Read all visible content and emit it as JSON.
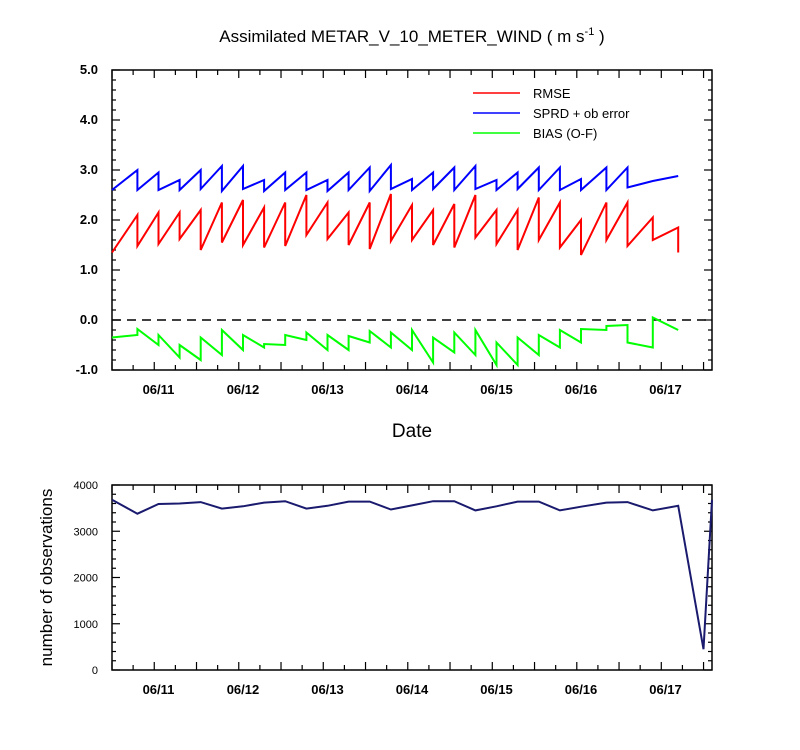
{
  "chart_data": [
    {
      "type": "line",
      "title_main": "Assimilated METAR_V_10_METER_WIND ( m s",
      "title_sup": "-1",
      "title_end": " )",
      "xlabel": "Date",
      "ylabel": "",
      "xlim": [
        0,
        7.1
      ],
      "ylim": [
        -1.0,
        5.0
      ],
      "yticks": [
        "-1.0",
        "0.0",
        "1.0",
        "2.0",
        "3.0",
        "4.0",
        "5.0"
      ],
      "x_categories": [
        "06/11",
        "06/12",
        "06/13",
        "06/14",
        "06/15",
        "06/16",
        "06/17"
      ],
      "zero_line": true,
      "legend_position": "top-right",
      "series": [
        {
          "name": "RMSE",
          "color": "#ff0000",
          "points": [
            [
              0,
              1.35
            ],
            [
              0.3,
              2.1
            ],
            [
              0.3,
              1.48
            ],
            [
              0.55,
              2.15
            ],
            [
              0.55,
              1.52
            ],
            [
              0.8,
              2.15
            ],
            [
              0.8,
              1.62
            ],
            [
              1.05,
              2.2
            ],
            [
              1.05,
              1.4
            ],
            [
              1.3,
              2.35
            ],
            [
              1.3,
              1.55
            ],
            [
              1.55,
              2.4
            ],
            [
              1.55,
              1.5
            ],
            [
              1.8,
              2.25
            ],
            [
              1.8,
              1.45
            ],
            [
              2.05,
              2.35
            ],
            [
              2.05,
              1.48
            ],
            [
              2.3,
              2.5
            ],
            [
              2.3,
              1.7
            ],
            [
              2.55,
              2.35
            ],
            [
              2.55,
              1.62
            ],
            [
              2.8,
              2.15
            ],
            [
              2.8,
              1.5
            ],
            [
              3.05,
              2.35
            ],
            [
              3.05,
              1.42
            ],
            [
              3.3,
              2.52
            ],
            [
              3.3,
              1.58
            ],
            [
              3.55,
              2.3
            ],
            [
              3.55,
              1.6
            ],
            [
              3.8,
              2.2
            ],
            [
              3.8,
              1.5
            ],
            [
              4.05,
              2.32
            ],
            [
              4.05,
              1.45
            ],
            [
              4.3,
              2.5
            ],
            [
              4.3,
              1.65
            ],
            [
              4.55,
              2.2
            ],
            [
              4.55,
              1.52
            ],
            [
              4.8,
              2.2
            ],
            [
              4.8,
              1.4
            ],
            [
              5.05,
              2.45
            ],
            [
              5.05,
              1.6
            ],
            [
              5.3,
              2.35
            ],
            [
              5.3,
              1.45
            ],
            [
              5.55,
              2.0
            ],
            [
              5.55,
              1.3
            ],
            [
              5.85,
              2.35
            ],
            [
              5.85,
              1.6
            ],
            [
              6.1,
              2.35
            ],
            [
              6.1,
              1.48
            ],
            [
              6.4,
              2.05
            ],
            [
              6.4,
              1.6
            ],
            [
              6.7,
              1.85
            ],
            [
              6.7,
              1.35
            ]
          ]
        },
        {
          "name": "SPRD + ob error",
          "color": "#0000ff",
          "points": [
            [
              0,
              2.6
            ],
            [
              0.3,
              3.0
            ],
            [
              0.3,
              2.6
            ],
            [
              0.55,
              2.95
            ],
            [
              0.55,
              2.6
            ],
            [
              0.8,
              2.8
            ],
            [
              0.8,
              2.6
            ],
            [
              1.05,
              3.0
            ],
            [
              1.05,
              2.62
            ],
            [
              1.3,
              3.08
            ],
            [
              1.3,
              2.58
            ],
            [
              1.55,
              3.08
            ],
            [
              1.55,
              2.62
            ],
            [
              1.8,
              2.8
            ],
            [
              1.8,
              2.58
            ],
            [
              2.05,
              2.95
            ],
            [
              2.05,
              2.6
            ],
            [
              2.3,
              2.95
            ],
            [
              2.3,
              2.6
            ],
            [
              2.55,
              2.8
            ],
            [
              2.55,
              2.58
            ],
            [
              2.8,
              2.95
            ],
            [
              2.8,
              2.6
            ],
            [
              3.05,
              3.05
            ],
            [
              3.05,
              2.58
            ],
            [
              3.3,
              3.1
            ],
            [
              3.3,
              2.62
            ],
            [
              3.55,
              2.82
            ],
            [
              3.55,
              2.6
            ],
            [
              3.8,
              2.95
            ],
            [
              3.8,
              2.62
            ],
            [
              4.05,
              3.05
            ],
            [
              4.05,
              2.6
            ],
            [
              4.3,
              3.08
            ],
            [
              4.3,
              2.62
            ],
            [
              4.55,
              2.8
            ],
            [
              4.55,
              2.6
            ],
            [
              4.8,
              2.95
            ],
            [
              4.8,
              2.62
            ],
            [
              5.05,
              3.05
            ],
            [
              5.05,
              2.6
            ],
            [
              5.3,
              3.05
            ],
            [
              5.3,
              2.6
            ],
            [
              5.55,
              2.82
            ],
            [
              5.55,
              2.6
            ],
            [
              5.85,
              3.05
            ],
            [
              5.85,
              2.6
            ],
            [
              6.1,
              3.05
            ],
            [
              6.1,
              2.65
            ],
            [
              6.4,
              2.78
            ],
            [
              6.7,
              2.88
            ]
          ]
        },
        {
          "name": "BIAS (O-F)",
          "color": "#00ff00",
          "points": [
            [
              0,
              -0.35
            ],
            [
              0.3,
              -0.3
            ],
            [
              0.3,
              -0.18
            ],
            [
              0.55,
              -0.5
            ],
            [
              0.55,
              -0.3
            ],
            [
              0.8,
              -0.75
            ],
            [
              0.8,
              -0.5
            ],
            [
              1.05,
              -0.8
            ],
            [
              1.05,
              -0.35
            ],
            [
              1.3,
              -0.7
            ],
            [
              1.3,
              -0.2
            ],
            [
              1.55,
              -0.6
            ],
            [
              1.55,
              -0.3
            ],
            [
              1.8,
              -0.55
            ],
            [
              1.8,
              -0.48
            ],
            [
              2.05,
              -0.5
            ],
            [
              2.05,
              -0.3
            ],
            [
              2.3,
              -0.4
            ],
            [
              2.3,
              -0.25
            ],
            [
              2.55,
              -0.6
            ],
            [
              2.55,
              -0.3
            ],
            [
              2.8,
              -0.6
            ],
            [
              2.8,
              -0.32
            ],
            [
              3.05,
              -0.45
            ],
            [
              3.05,
              -0.22
            ],
            [
              3.3,
              -0.55
            ],
            [
              3.3,
              -0.25
            ],
            [
              3.55,
              -0.6
            ],
            [
              3.55,
              -0.2
            ],
            [
              3.8,
              -0.85
            ],
            [
              3.8,
              -0.35
            ],
            [
              4.05,
              -0.65
            ],
            [
              4.05,
              -0.25
            ],
            [
              4.3,
              -0.7
            ],
            [
              4.3,
              -0.2
            ],
            [
              4.55,
              -0.9
            ],
            [
              4.55,
              -0.45
            ],
            [
              4.8,
              -0.9
            ],
            [
              4.8,
              -0.35
            ],
            [
              5.05,
              -0.7
            ],
            [
              5.05,
              -0.3
            ],
            [
              5.3,
              -0.55
            ],
            [
              5.3,
              -0.2
            ],
            [
              5.55,
              -0.45
            ],
            [
              5.55,
              -0.18
            ],
            [
              5.85,
              -0.2
            ],
            [
              5.85,
              -0.12
            ],
            [
              6.1,
              -0.1
            ],
            [
              6.1,
              -0.45
            ],
            [
              6.4,
              -0.55
            ],
            [
              6.4,
              0.05
            ],
            [
              6.7,
              -0.2
            ]
          ]
        }
      ]
    },
    {
      "type": "line",
      "title": "",
      "xlabel": "",
      "ylabel": "number of observations",
      "xlim": [
        0,
        7.1
      ],
      "ylim": [
        0,
        4000
      ],
      "yticks": [
        "0",
        "1000",
        "2000",
        "3000",
        "4000"
      ],
      "x_categories": [
        "06/11",
        "06/12",
        "06/13",
        "06/14",
        "06/15",
        "06/16",
        "06/17"
      ],
      "series": [
        {
          "color": "#1a1a6e",
          "points": [
            [
              0,
              3680
            ],
            [
              0.3,
              3380
            ],
            [
              0.55,
              3590
            ],
            [
              0.8,
              3600
            ],
            [
              1.05,
              3630
            ],
            [
              1.3,
              3490
            ],
            [
              1.55,
              3540
            ],
            [
              1.8,
              3620
            ],
            [
              2.05,
              3650
            ],
            [
              2.3,
              3490
            ],
            [
              2.55,
              3550
            ],
            [
              2.8,
              3640
            ],
            [
              3.05,
              3640
            ],
            [
              3.3,
              3470
            ],
            [
              3.55,
              3560
            ],
            [
              3.8,
              3650
            ],
            [
              4.05,
              3650
            ],
            [
              4.3,
              3450
            ],
            [
              4.55,
              3540
            ],
            [
              4.8,
              3640
            ],
            [
              5.05,
              3640
            ],
            [
              5.3,
              3450
            ],
            [
              5.55,
              3530
            ],
            [
              5.85,
              3620
            ],
            [
              6.1,
              3630
            ],
            [
              6.4,
              3450
            ],
            [
              6.7,
              3550
            ],
            [
              7.0,
              450
            ],
            [
              7.1,
              3680
            ]
          ]
        }
      ]
    }
  ]
}
